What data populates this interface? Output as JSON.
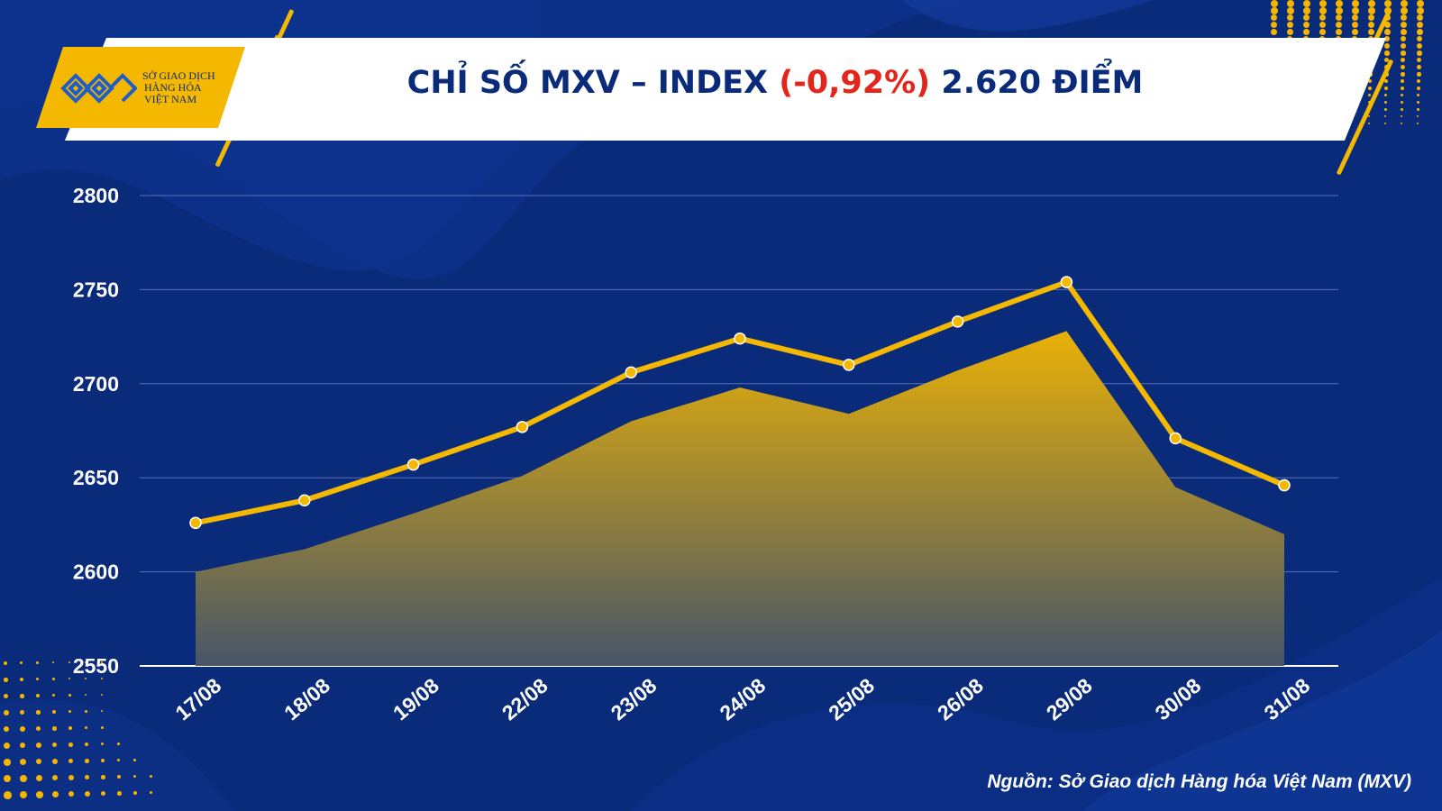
{
  "header": {
    "logo_lines": [
      "SỞ GIAO DỊCH",
      "HÀNG HÓA",
      "VIỆT NAM"
    ],
    "title_prefix": "CHỈ SỐ MXV – INDEX ",
    "title_change": "(-0,92%)",
    "title_suffix": " 2.620 ĐIỂM"
  },
  "footer": {
    "source": "Nguồn: Sở Giao dịch Hàng hóa Việt Nam (MXV)"
  },
  "colors": {
    "background": "#0a2a7a",
    "accent": "#f5b800",
    "negative": "#e3261c",
    "title": "#0a2a7a"
  },
  "chart_data": {
    "type": "line",
    "title": "CHỈ SỐ MXV – INDEX (-0,92%) 2.620 ĐIỂM",
    "xlabel": "",
    "ylabel": "",
    "categories": [
      "17/08",
      "18/08",
      "19/08",
      "22/08",
      "23/08",
      "24/08",
      "25/08",
      "26/08",
      "29/08",
      "30/08",
      "31/08"
    ],
    "series": [
      {
        "values": [
          2600,
          2612,
          2631,
          2651,
          2680,
          2698,
          2684,
          2707,
          2728,
          2645,
          2620
        ]
      }
    ],
    "ylim": [
      2550,
      2800
    ],
    "yticks": [
      2800,
      2750,
      2700,
      2650,
      2600,
      2550
    ],
    "grid": true,
    "legend": "none"
  }
}
